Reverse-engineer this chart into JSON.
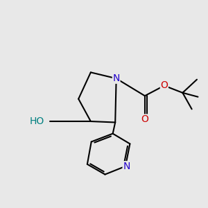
{
  "bg_color": "#e8e8e8",
  "bond_color": "#000000",
  "bond_width": 1.5,
  "atom_colors": {
    "N_pyrr": "#2200cc",
    "N_pyr": "#2200cc",
    "O": "#cc0000",
    "HO": "#008080"
  },
  "font_size": 9,
  "figsize": [
    3.0,
    3.0
  ],
  "dpi": 100,
  "xlim": [
    0,
    10
  ],
  "ylim": [
    0,
    10
  ]
}
